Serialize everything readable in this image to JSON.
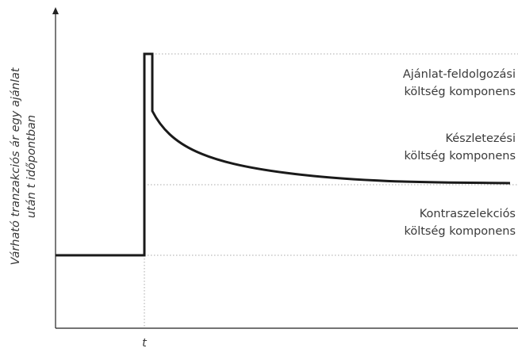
{
  "y_axis_label": [
    "Várható tranzakciós ár egy ajánlat",
    "után t időpontban"
  ],
  "x_axis_label": "t",
  "components": [
    {
      "lines": [
        "Ajánlat-feldolgozási",
        "költség komponens"
      ]
    },
    {
      "lines": [
        "Készletezési",
        "költség komponens"
      ]
    },
    {
      "lines": [
        "Kontraszelekciós",
        "költség komponens"
      ]
    }
  ]
}
